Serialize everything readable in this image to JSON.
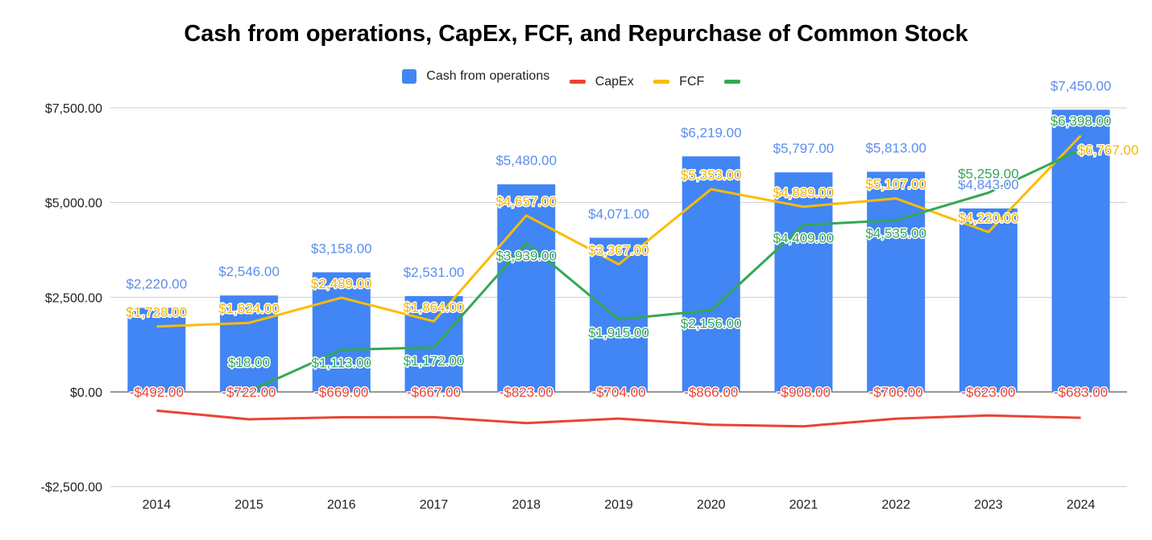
{
  "chart_data": {
    "type": "bar",
    "title": "Cash from operations, CapEx, FCF, and Repurchase of Common Stock",
    "categories": [
      "2014",
      "2015",
      "2016",
      "2017",
      "2018",
      "2019",
      "2020",
      "2021",
      "2022",
      "2023",
      "2024"
    ],
    "series": [
      {
        "name": "Cash from operations",
        "type": "bar",
        "color": "#4285f4",
        "label_color": "#5b8def",
        "values": [
          2220,
          2546,
          3158,
          2531,
          5480,
          4071,
          6219,
          5797,
          5813,
          4843,
          7450
        ],
        "labels": [
          "$2,220.00",
          "$2,546.00",
          "$3,158.00",
          "$2,531.00",
          "$5,480.00",
          "$4,071.00",
          "$6,219.00",
          "$5,797.00",
          "$5,813.00",
          "$4,843.00",
          "$7,450.00"
        ]
      },
      {
        "name": "CapEx",
        "type": "line",
        "color": "#ea4335",
        "label_color": "#ea4335",
        "values": [
          -492,
          -722,
          -669,
          -667,
          -823,
          -704,
          -866,
          -908,
          -706,
          -623,
          -683
        ],
        "labels": [
          "-$492.00",
          "-$722.00",
          "-$669.00",
          "-$667.00",
          "-$823.00",
          "-$704.00",
          "-$866.00",
          "-$908.00",
          "-$706.00",
          "-$623.00",
          "-$683.00"
        ]
      },
      {
        "name": "FCF",
        "type": "line",
        "color": "#fbbc04",
        "label_color": "#f5b400",
        "values": [
          1728,
          1824,
          2489,
          1864,
          4657,
          3367,
          5353,
          4889,
          5107,
          4220,
          6767
        ],
        "labels": [
          "$1,728.00",
          "$1,824.00",
          "$2,489.00",
          "$1,864.00",
          "$4,657.00",
          "$3,367.00",
          "$5,353.00",
          "$4,889.00",
          "$5,107.00",
          "$4,220.00",
          "$6,767.00"
        ]
      },
      {
        "name": "",
        "type": "line",
        "color": "#34a853",
        "label_color": "#34a853",
        "values": [
          null,
          18,
          1113,
          1172,
          3939,
          1915,
          2156,
          4409,
          4535,
          5259,
          6398
        ],
        "labels": [
          null,
          "$18.00",
          "$1,113.00",
          "$1,172.00",
          "$3,939.00",
          "$1,915.00",
          "$2,156.00",
          "$4,409.00",
          "$4,535.00",
          "$5,259.00",
          "$6,398.00"
        ]
      }
    ],
    "yticks": [
      -2500,
      0,
      2500,
      5000,
      7500
    ],
    "ytick_labels": [
      "-$2,500.00",
      "$0.00",
      "$2,500.00",
      "$5,000.00",
      "$7,500.00"
    ],
    "ylim": [
      -2500,
      7500
    ],
    "grid": true,
    "legend_position": "top"
  }
}
